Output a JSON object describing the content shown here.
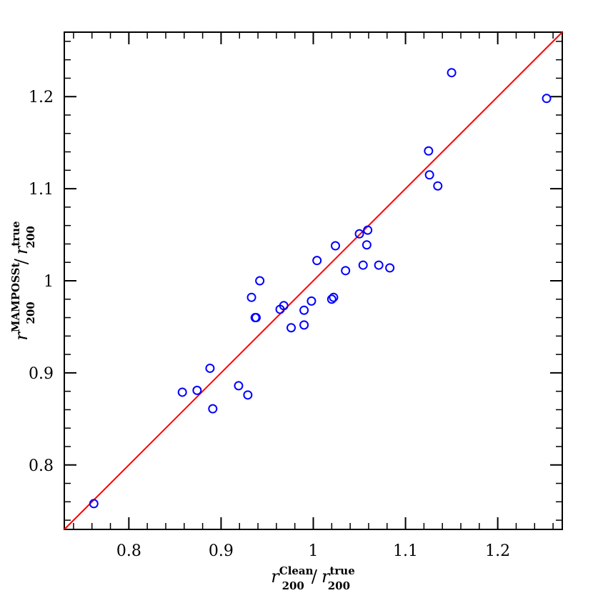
{
  "chart_data": {
    "type": "scatter",
    "xlim": [
      0.73,
      1.27
    ],
    "ylim": [
      0.73,
      1.27
    ],
    "x_ticks": [
      0.8,
      0.9,
      1.0,
      1.1,
      1.2
    ],
    "x_tick_labels": [
      "0.8",
      "0.9",
      "1",
      "1.1",
      "1.2"
    ],
    "y_ticks": [
      0.8,
      0.9,
      1.0,
      1.1,
      1.2
    ],
    "y_tick_labels": [
      "0.8",
      "0.9",
      "1",
      "1.1",
      "1.2"
    ],
    "minor_tick_step": 0.02,
    "grid": false,
    "xlabel": {
      "sym1": "r",
      "sup1": "Clean",
      "sub1": "200",
      "slash": "/",
      "sym2": "r",
      "sup2": "true",
      "sub2": "200"
    },
    "ylabel": {
      "sym1": "r",
      "sup1": "MAMPOSSt",
      "sub1": "200",
      "slash": "/",
      "sym2": "r",
      "sup2": "true",
      "sub2": "200"
    },
    "line": {
      "x": [
        0.73,
        1.27
      ],
      "y": [
        0.73,
        1.27
      ],
      "color": "#ff0000"
    },
    "marker_color": "#0000ff",
    "series": [
      {
        "x": [
          0.762,
          0.858,
          0.874,
          0.888,
          0.891,
          0.919,
          0.929,
          0.933,
          0.937,
          0.938,
          0.942,
          0.964,
          0.968,
          0.976,
          0.99,
          0.99,
          0.998,
          1.004,
          1.02,
          1.022,
          1.024,
          1.035,
          1.05,
          1.054,
          1.058,
          1.059,
          1.071,
          1.083,
          1.125,
          1.126,
          1.135,
          1.15,
          1.253
        ],
        "y": [
          0.758,
          0.879,
          0.881,
          0.905,
          0.861,
          0.886,
          0.876,
          0.982,
          0.96,
          0.96,
          1.0,
          0.969,
          0.973,
          0.949,
          0.952,
          0.968,
          0.978,
          1.022,
          0.98,
          0.982,
          1.038,
          1.011,
          1.051,
          1.017,
          1.039,
          1.055,
          1.017,
          1.014,
          1.141,
          1.115,
          1.103,
          1.226,
          1.198
        ]
      }
    ]
  }
}
